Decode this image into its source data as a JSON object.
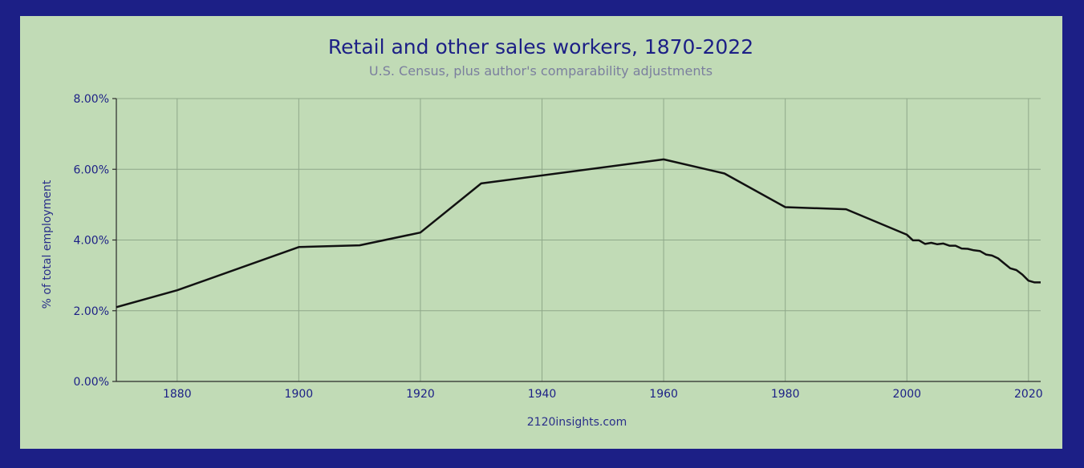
{
  "colors": {
    "frame": "#1c1f86",
    "panel": "#c1dbb6",
    "line": "#111111",
    "grid": "#8fa88a",
    "title": "#1c1f86",
    "subtitle": "#7b7f9e"
  },
  "chart_data": {
    "type": "line",
    "title": "Retail and other sales workers, 1870-2022",
    "subtitle": "U.S. Census, plus author's comparability adjustments",
    "xlabel": "2120insights.com",
    "ylabel": "% of total employment",
    "xlim": [
      1870,
      2022
    ],
    "ylim": [
      0,
      8
    ],
    "x_ticks": [
      1880,
      1900,
      1920,
      1940,
      1960,
      1980,
      2000,
      2020
    ],
    "x_tick_labels": [
      "1880",
      "1900",
      "1920",
      "1940",
      "1960",
      "1980",
      "2000",
      "2020"
    ],
    "y_ticks": [
      0,
      2,
      4,
      6,
      8
    ],
    "y_tick_labels": [
      "0.00%",
      "2.00%",
      "4.00%",
      "6.00%",
      "8.00%"
    ],
    "grid": true,
    "legend": "none",
    "series": [
      {
        "x": [
          1870,
          1880,
          1900,
          1910,
          1920,
          1930,
          1960,
          1970,
          1980,
          1990,
          2000,
          2001,
          2002,
          2003,
          2004,
          2005,
          2006,
          2007,
          2008,
          2009,
          2010,
          2011,
          2012,
          2013,
          2014,
          2015,
          2016,
          2017,
          2018,
          2019,
          2020,
          2021,
          2022
        ],
        "y": [
          2.1,
          2.58,
          3.8,
          3.85,
          4.21,
          5.6,
          6.28,
          5.88,
          4.93,
          4.87,
          4.15,
          3.99,
          3.99,
          3.89,
          3.92,
          3.88,
          3.9,
          3.84,
          3.84,
          3.76,
          3.75,
          3.71,
          3.69,
          3.59,
          3.56,
          3.48,
          3.34,
          3.2,
          3.15,
          3.02,
          2.85,
          2.8,
          2.8
        ]
      }
    ]
  }
}
